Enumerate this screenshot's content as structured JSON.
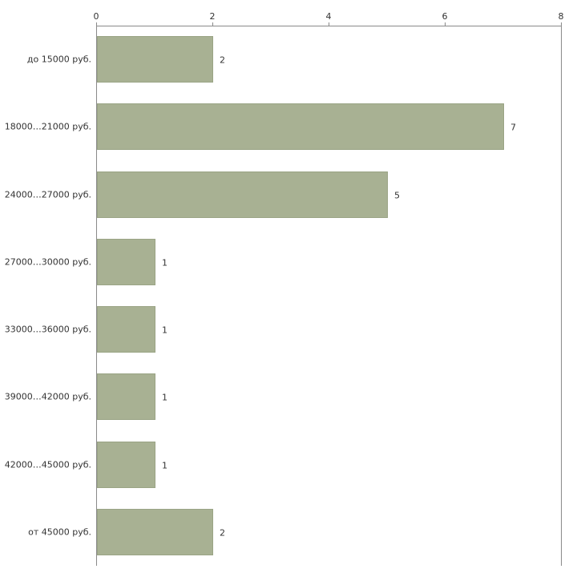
{
  "chart_data": {
    "type": "bar",
    "orientation": "horizontal",
    "title": "",
    "xlabel": "",
    "ylabel": "",
    "categories": [
      "до 15000 руб.",
      "18000…21000 руб.",
      "24000…27000 руб.",
      "27000…30000 руб.",
      "33000…36000 руб.",
      "39000…42000 руб.",
      "42000…45000 руб.",
      "от 45000 руб."
    ],
    "values": [
      2,
      7,
      5,
      1,
      1,
      1,
      1,
      2
    ],
    "value_labels": [
      "2",
      "7",
      "5",
      "1",
      "1",
      "1",
      "1",
      "2"
    ],
    "xlim": [
      0,
      8
    ],
    "xticks": [
      "0",
      "2",
      "4",
      "6",
      "8"
    ],
    "xtick_values": [
      0,
      2,
      4,
      6,
      8
    ],
    "axis_position": "top",
    "grid": "off",
    "legend": "none",
    "colors": {
      "bar_fill": "#a8b193",
      "bar_border": "#9aa485",
      "axis": "#8a8a8a",
      "text": "#333333",
      "background": "#ffffff"
    }
  }
}
